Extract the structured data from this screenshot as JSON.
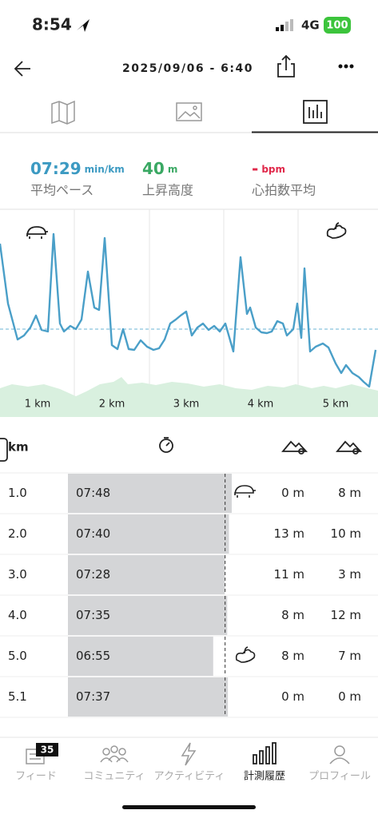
{
  "status": {
    "time": "8:54",
    "network": "4G",
    "battery": "100"
  },
  "header": {
    "date": "2025/09/06 - 6:40"
  },
  "stats": [
    {
      "value": "07:29",
      "unit": "min/km",
      "label": "平均ペース"
    },
    {
      "value": "40",
      "unit": "m",
      "label": "上昇高度"
    },
    {
      "value": "-",
      "unit": "bpm",
      "label": "心拍数平均"
    }
  ],
  "chart": {
    "km_labels": [
      "1 km",
      "2 km",
      "3 km",
      "4 km",
      "5 km"
    ]
  },
  "table": {
    "header": "km",
    "rows": [
      {
        "km": "1.0",
        "pace": "07:48",
        "up": "0 m",
        "down": "8 m"
      },
      {
        "km": "2.0",
        "pace": "07:40",
        "up": "13 m",
        "down": "10 m"
      },
      {
        "km": "3.0",
        "pace": "07:28",
        "up": "11 m",
        "down": "3 m"
      },
      {
        "km": "4.0",
        "pace": "07:35",
        "up": "8 m",
        "down": "12 m"
      },
      {
        "km": "5.0",
        "pace": "06:55",
        "up": "8 m",
        "down": "7 m"
      },
      {
        "km": "5.1",
        "pace": "07:37",
        "up": "0 m",
        "down": "0 m"
      }
    ]
  },
  "nav": {
    "badge": "35",
    "items": [
      "フィード",
      "コミュニティ",
      "アクティビティ",
      "計測履歴",
      "プロフィール"
    ],
    "active": 3
  }
}
